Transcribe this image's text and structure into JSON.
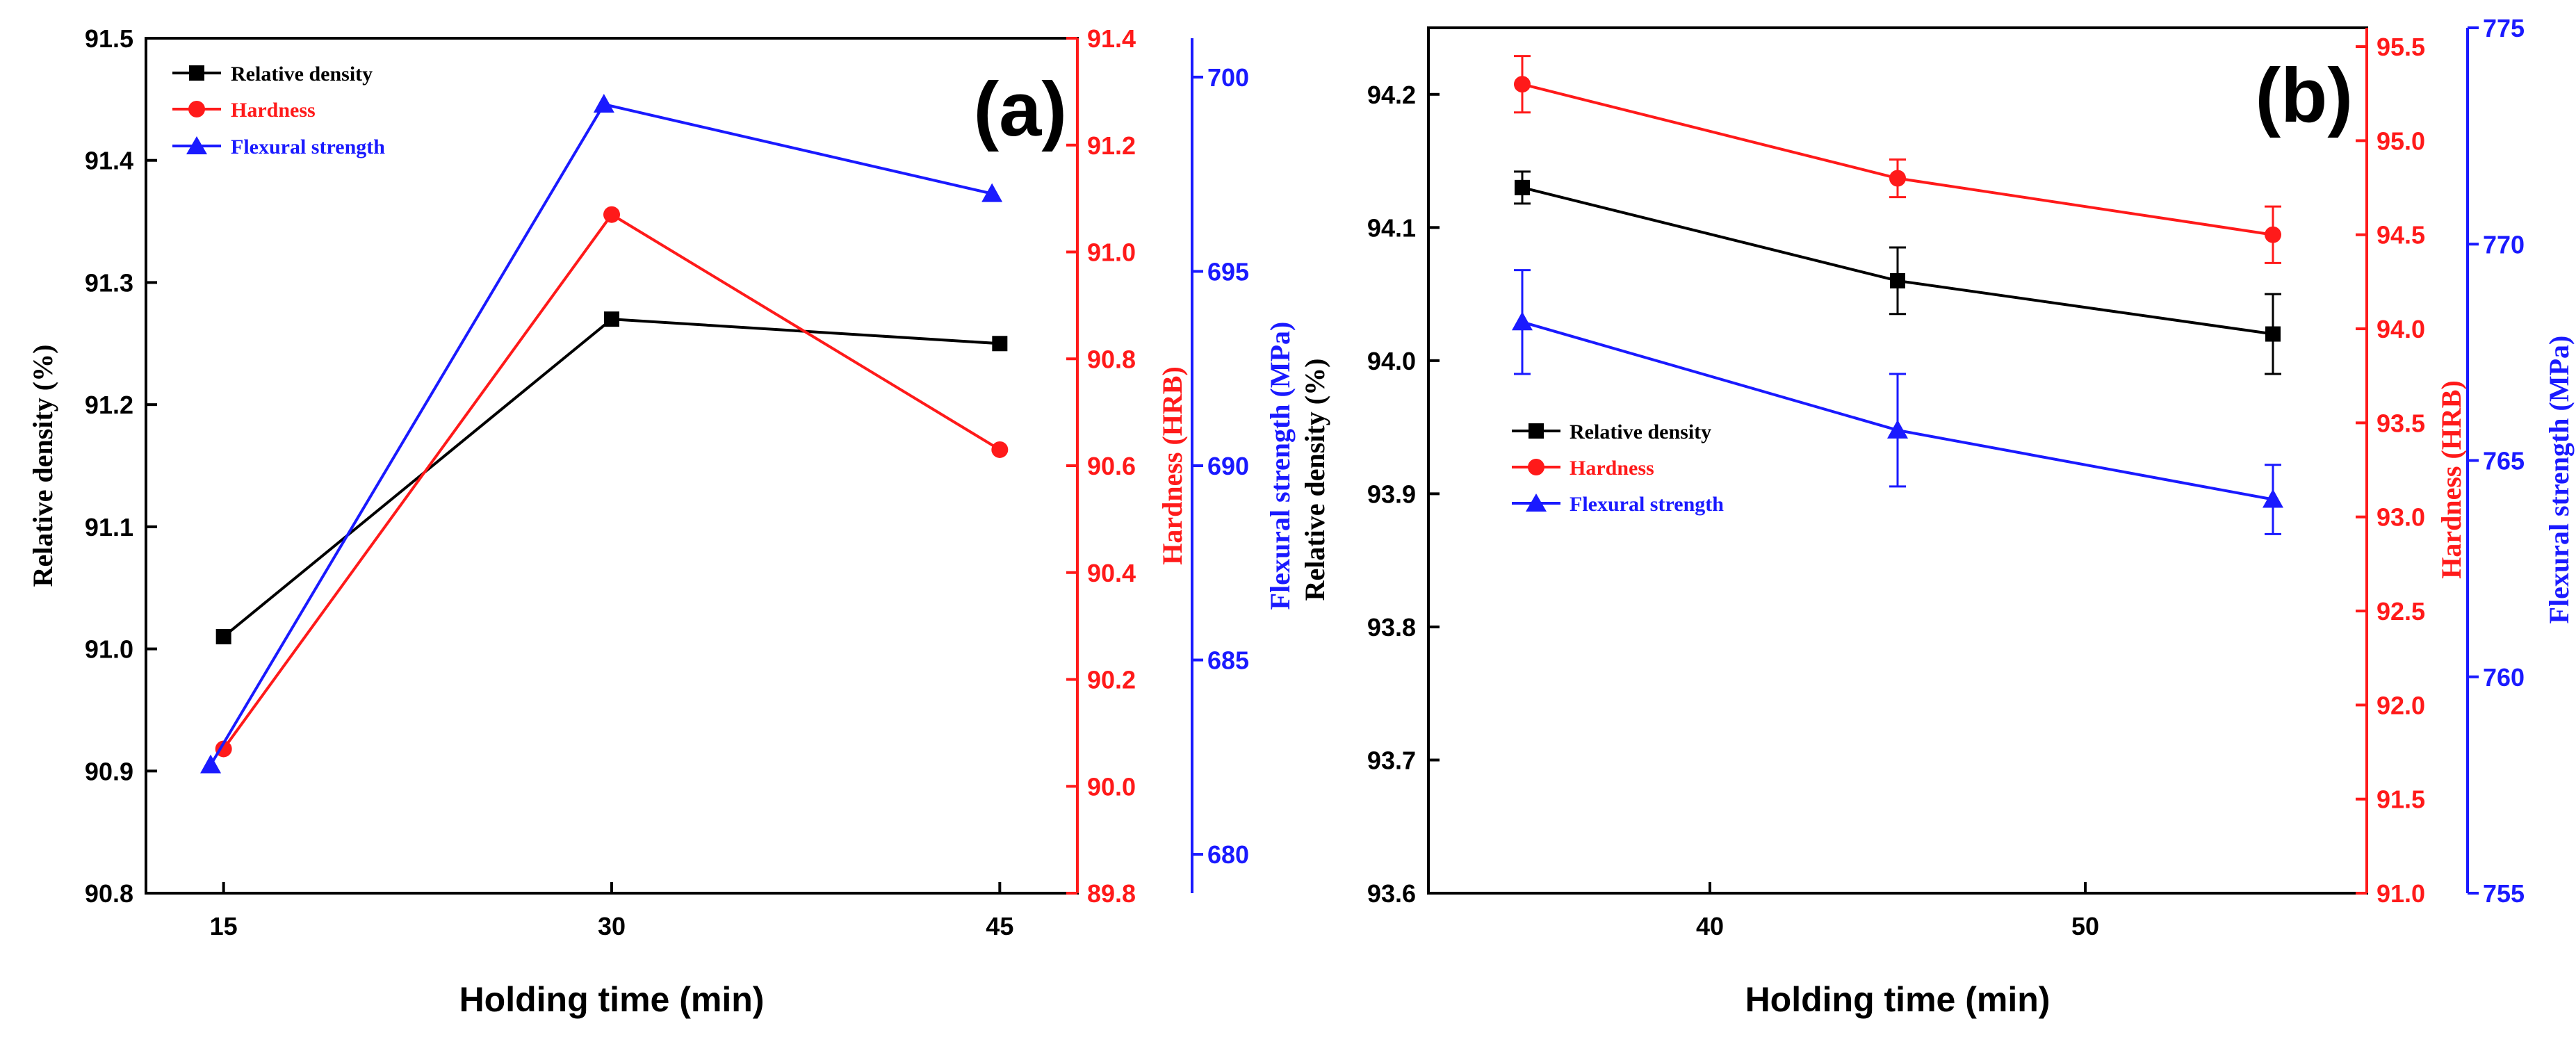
{
  "colors": {
    "density": "#000000",
    "hardness": "#ff1a1a",
    "strength": "#1a1aff"
  },
  "chart_data": [
    {
      "panel": "(a)",
      "type": "line",
      "xlabel": "Holding time (min)",
      "x": [
        15,
        30,
        45
      ],
      "xticks": [
        "15",
        "30",
        "45"
      ],
      "xlim": [
        12,
        48
      ],
      "left_axis": {
        "label": "Relative density (%)",
        "ylim": [
          90.8,
          91.5
        ],
        "ticks": [
          "90.8",
          "90.9",
          "91.0",
          "91.1",
          "91.2",
          "91.3",
          "91.4",
          "91.5"
        ]
      },
      "right_axis_1": {
        "label": "Hardness (HRB)",
        "ylim": [
          89.8,
          91.4
        ],
        "ticks": [
          "89.8",
          "90.0",
          "90.2",
          "90.4",
          "90.6",
          "90.8",
          "91.0",
          "91.2",
          "91.4"
        ]
      },
      "right_axis_2": {
        "label": "Flexural strength (MPa)",
        "ylim": [
          679,
          701
        ],
        "ticks": [
          "680",
          "685",
          "690",
          "695",
          "700"
        ]
      },
      "legend": [
        "Relative density",
        "Hardness",
        "Flexural strength"
      ],
      "series": [
        {
          "name": "Relative density",
          "axis": "left",
          "marker": "square",
          "x": [
            15,
            30,
            45
          ],
          "values": [
            91.01,
            91.27,
            91.25
          ]
        },
        {
          "name": "Hardness",
          "axis": "right1",
          "marker": "circle",
          "x": [
            15,
            30,
            45
          ],
          "values": [
            90.07,
            91.07,
            90.63
          ]
        },
        {
          "name": "Flexural strength",
          "axis": "right2",
          "marker": "triangle",
          "x": [
            14.5,
            29.7,
            44.7
          ],
          "values": [
            682.3,
            699.3,
            697.0
          ]
        }
      ]
    },
    {
      "panel": "(b)",
      "type": "line",
      "xlabel": "Holding time (min)",
      "x": [
        35,
        45,
        55
      ],
      "xticks": [
        "40",
        "50"
      ],
      "xlim": [
        32.5,
        57.5
      ],
      "left_axis": {
        "label": "Relative density (%)",
        "ylim": [
          93.6,
          94.25
        ],
        "ticks": [
          "93.6",
          "93.7",
          "93.8",
          "93.9",
          "94.0",
          "94.1",
          "94.2"
        ]
      },
      "right_axis_1": {
        "label": "Hardness (HRB)",
        "ylim": [
          91.0,
          95.6
        ],
        "ticks": [
          "91.0",
          "91.5",
          "92.0",
          "92.5",
          "93.0",
          "93.5",
          "94.0",
          "94.5",
          "95.0",
          "95.5"
        ]
      },
      "right_axis_2": {
        "label": "Flexural strength (MPa)",
        "ylim": [
          755,
          775
        ],
        "ticks": [
          "755",
          "760",
          "765",
          "770",
          "775"
        ]
      },
      "legend": [
        "Relative density",
        "Hardness",
        "Flexural strength"
      ],
      "series": [
        {
          "name": "Relative density",
          "axis": "left",
          "marker": "square",
          "x": [
            35,
            45,
            55
          ],
          "values": [
            94.13,
            94.06,
            94.02
          ],
          "errors": [
            0.012,
            0.025,
            0.03
          ]
        },
        {
          "name": "Hardness",
          "axis": "right1",
          "marker": "circle",
          "x": [
            35,
            45,
            55
          ],
          "values": [
            95.3,
            94.8,
            94.5
          ],
          "errors": [
            0.15,
            0.1,
            0.15
          ]
        },
        {
          "name": "Flexural strength",
          "axis": "right2",
          "marker": "triangle",
          "x": [
            35,
            45,
            55
          ],
          "values": [
            768.2,
            765.7,
            764.1
          ],
          "errors": [
            1.2,
            1.3,
            0.8
          ]
        }
      ]
    }
  ]
}
